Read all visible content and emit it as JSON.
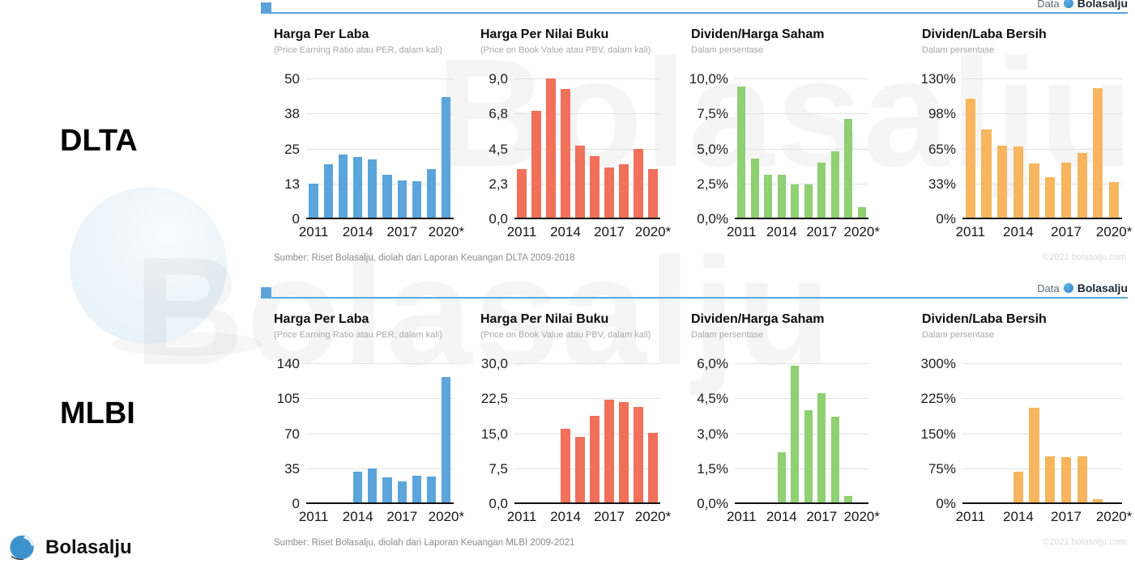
{
  "brand": {
    "data_label": "Data",
    "name": "Bolasalju"
  },
  "footer": {
    "logo_text": "Bolasalju"
  },
  "watermark": {
    "text": "Bolasalju"
  },
  "rows": [
    {
      "ticker": "DLTA",
      "source": "Sumber: Riset Bolasalju, diolah dari Laporan Keuangan DLTA 2009-2018",
      "copyright": "©2021 bolasalju.com"
    },
    {
      "ticker": "MLBI",
      "source": "Sumber: Riset Bolasalju, diolah dari Laporan Keuangan MLBI 2009-2021",
      "copyright": "©2021 bolasalju.com"
    }
  ],
  "chart_common": {
    "categories": [
      "2011",
      "2012",
      "2013",
      "2014",
      "2015",
      "2016",
      "2017",
      "2018",
      "2019",
      "2020*"
    ],
    "xticks": [
      {
        "slot": 0,
        "label": "2011"
      },
      {
        "slot": 3,
        "label": "2014"
      },
      {
        "slot": 6,
        "label": "2017"
      },
      {
        "slot": 9,
        "label": "2020*"
      }
    ],
    "grid": true
  },
  "chart_data": [
    {
      "type": "bar",
      "group": "DLTA",
      "title": "Harga Per Laba",
      "subtitle": "(Price Earning Ratio atau PER, dalam kali)",
      "color": "#5ba4dc",
      "ylim": [
        0,
        50
      ],
      "ytick_labels": [
        "50",
        "38",
        "25",
        "13",
        "0"
      ],
      "categories": [
        "2011",
        "2012",
        "2013",
        "2014",
        "2015",
        "2016",
        "2017",
        "2018",
        "2019",
        "2020*"
      ],
      "values": [
        12.5,
        19.5,
        22.7,
        22.0,
        21.0,
        15.7,
        13.5,
        13.3,
        17.5,
        43.5
      ],
      "label_col": 40
    },
    {
      "type": "bar",
      "group": "DLTA",
      "title": "Harga Per Nilai Buku",
      "subtitle": "(Price on Book Value atau PBV, dalam kali)",
      "color": "#f0705a",
      "ylim": [
        0,
        9
      ],
      "ytick_labels": [
        "9,0",
        "6,8",
        "4,5",
        "2,3",
        "0,0"
      ],
      "categories": [
        "2011",
        "2012",
        "2013",
        "2014",
        "2015",
        "2016",
        "2017",
        "2018",
        "2019",
        "2020*"
      ],
      "values": [
        3.2,
        6.9,
        9.0,
        8.3,
        4.7,
        4.0,
        3.3,
        3.5,
        4.5,
        3.2
      ],
      "label_col": 42
    },
    {
      "type": "bar",
      "group": "DLTA",
      "title": "Dividen/Harga Saham",
      "subtitle": "Dalam persentase",
      "color": "#8ed072",
      "ylim": [
        0,
        10
      ],
      "ytick_labels": [
        "10,0%",
        "7,5%",
        "5,0%",
        "2,5%",
        "0,0%"
      ],
      "categories": [
        "2011",
        "2012",
        "2013",
        "2014",
        "2015",
        "2016",
        "2017",
        "2018",
        "2019",
        "2020*"
      ],
      "values": [
        9.4,
        4.3,
        3.1,
        3.1,
        2.4,
        2.4,
        4.0,
        4.8,
        7.1,
        0.8
      ],
      "label_col": 54
    },
    {
      "type": "bar",
      "group": "DLTA",
      "title": "Dividen/Laba Bersih",
      "subtitle": "Dalam persentase",
      "color": "#f6b55e",
      "ylim": [
        0,
        130
      ],
      "ytick_labels": [
        "130%",
        "98%",
        "65%",
        "33%",
        "0%"
      ],
      "categories": [
        "2011",
        "2012",
        "2013",
        "2014",
        "2015",
        "2016",
        "2017",
        "2018",
        "2019",
        "2020*"
      ],
      "values": [
        111,
        83,
        68,
        67,
        51,
        38,
        52,
        61,
        121,
        34
      ],
      "label_col": 50
    },
    {
      "type": "bar",
      "group": "MLBI",
      "title": "Harga Per Laba",
      "subtitle": "(Price Earning Ratio atau PER, dalam kali)",
      "color": "#5ba4dc",
      "ylim": [
        0,
        140
      ],
      "ytick_labels": [
        "140",
        "105",
        "70",
        "35",
        "0"
      ],
      "categories": [
        "2011",
        "2012",
        "2013",
        "2014",
        "2015",
        "2016",
        "2017",
        "2018",
        "2019",
        "2020*"
      ],
      "values": [
        0,
        0,
        0,
        31.5,
        35,
        26,
        21.5,
        27.5,
        27,
        126
      ],
      "label_col": 40
    },
    {
      "type": "bar",
      "group": "MLBI",
      "title": "Harga Per Nilai Buku",
      "subtitle": "(Price on Book Value atau PBV, dalam kali)",
      "color": "#f0705a",
      "ylim": [
        0,
        30
      ],
      "ytick_labels": [
        "30,0",
        "22,5",
        "15,0",
        "7,5",
        "0,0"
      ],
      "categories": [
        "2011",
        "2012",
        "2013",
        "2014",
        "2015",
        "2016",
        "2017",
        "2018",
        "2019",
        "2020*"
      ],
      "values": [
        0,
        0,
        0,
        15.9,
        14.3,
        18.8,
        22.2,
        21.6,
        20.7,
        15.1
      ],
      "label_col": 42
    },
    {
      "type": "bar",
      "group": "MLBI",
      "title": "Dividen/Harga Saham",
      "subtitle": "Dalam persentase",
      "color": "#8ed072",
      "ylim": [
        0,
        6
      ],
      "ytick_labels": [
        "6,0%",
        "4,5%",
        "3,0%",
        "1,5%",
        "0,0%"
      ],
      "categories": [
        "2011",
        "2012",
        "2013",
        "2014",
        "2015",
        "2016",
        "2017",
        "2018",
        "2019",
        "2020*"
      ],
      "values": [
        0,
        0,
        0,
        2.2,
        5.9,
        4.0,
        4.7,
        3.7,
        0.3,
        0
      ],
      "label_col": 54
    },
    {
      "type": "bar",
      "group": "MLBI",
      "title": "Dividen/Laba Bersih",
      "subtitle": "Dalam persentase",
      "color": "#f6b55e",
      "ylim": [
        0,
        300
      ],
      "ytick_labels": [
        "300%",
        "225%",
        "150%",
        "75%",
        "0%"
      ],
      "categories": [
        "2011",
        "2012",
        "2013",
        "2014",
        "2015",
        "2016",
        "2017",
        "2018",
        "2019",
        "2020*"
      ],
      "values": [
        0,
        0,
        0,
        68,
        204,
        101,
        99,
        101,
        9,
        0
      ],
      "label_col": 50
    }
  ]
}
